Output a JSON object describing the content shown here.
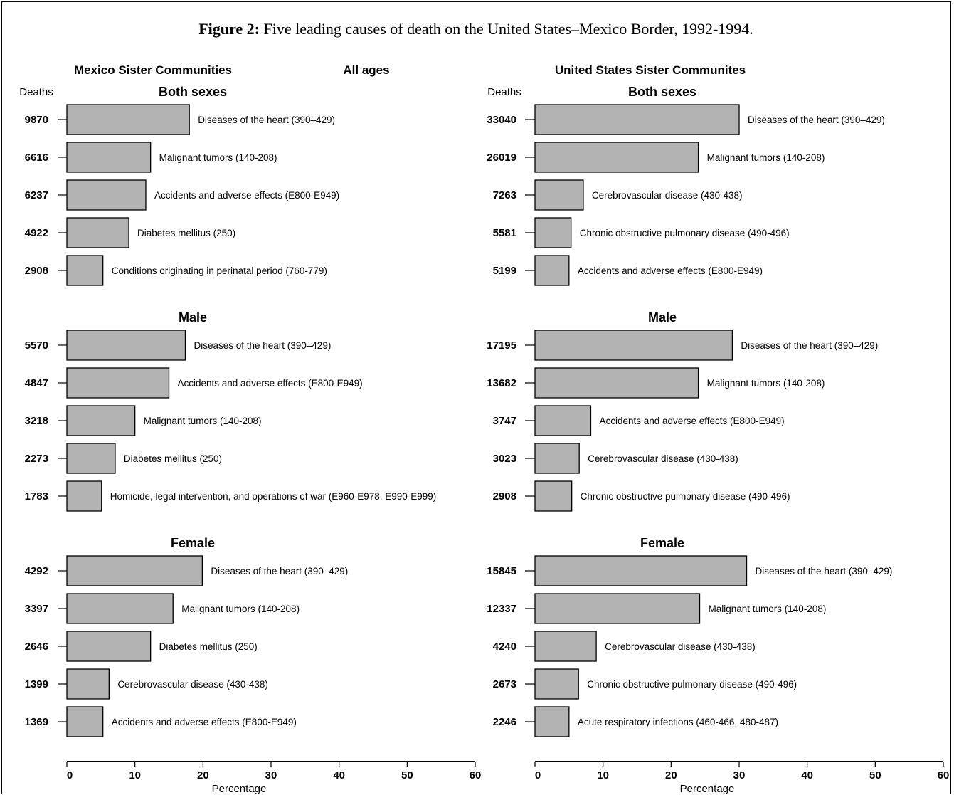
{
  "chart_data": [
    {
      "type": "bar",
      "title": "Figure 2:",
      "title_rest": "Five leading causes of death on the United States–Mexico Border, 1992-1994.",
      "region": "Mexico Sister Communities",
      "age_group": "All ages",
      "ylabel": "Deaths",
      "xlabel": "Percentage",
      "xlim": [
        0,
        60
      ],
      "xticks": [
        "0",
        "10",
        "20",
        "30",
        "40",
        "50",
        "60"
      ],
      "orientation": "horizontal",
      "panels": [
        {
          "name": "Both sexes",
          "categories": [
            "Diseases of the heart (390–429)",
            "Malignant tumors (140-208)",
            "Accidents and adverse effects (E800-E949)",
            "Diabetes mellitus (250)",
            "Conditions originating in perinatal period (760-779)"
          ],
          "deaths": [
            "9870",
            "6616",
            "6237",
            "4922",
            "2908"
          ],
          "values": [
            18.0,
            12.3,
            11.6,
            9.1,
            5.3
          ]
        },
        {
          "name": "Male",
          "categories": [
            "Diseases of the heart (390–429)",
            "Accidents and adverse effects (E800-E949)",
            "Malignant tumors (140-208)",
            "Diabetes mellitus (250)",
            "Homicide, legal intervention, and operations of war (E960-E978, E990-E999)"
          ],
          "deaths": [
            "5570",
            "4847",
            "3218",
            "2273",
            "1783"
          ],
          "values": [
            17.4,
            15.0,
            10.0,
            7.1,
            5.1
          ]
        },
        {
          "name": "Female",
          "categories": [
            "Diseases of the heart (390–429)",
            "Malignant tumors (140-208)",
            "Diabetes mellitus (250)",
            "Cerebrovascular disease (430-438)",
            "Accidents and adverse effects (E800-E949)"
          ],
          "deaths": [
            "4292",
            "3397",
            "2646",
            "1399",
            "1369"
          ],
          "values": [
            19.9,
            15.6,
            12.3,
            6.2,
            5.3
          ]
        }
      ]
    },
    {
      "type": "bar",
      "region": "United States Sister Communites",
      "ylabel": "Deaths",
      "xlabel": "Percentage",
      "xlim": [
        0,
        60
      ],
      "xticks": [
        "0",
        "10",
        "20",
        "30",
        "40",
        "50",
        "60"
      ],
      "orientation": "horizontal",
      "panels": [
        {
          "name": "Both sexes",
          "categories": [
            "Diseases of the heart (390–429)",
            "Malignant tumors (140-208)",
            "Cerebrovascular disease (430-438)",
            "Chronic obstructive pulmonary disease (490-496)",
            "Accidents and adverse effects (E800-E949)"
          ],
          "deaths": [
            "33040",
            "26019",
            "7263",
            "5581",
            "5199"
          ],
          "values": [
            30.0,
            24.0,
            7.1,
            5.3,
            5.0
          ]
        },
        {
          "name": "Male",
          "categories": [
            "Diseases of the heart (390–429)",
            "Malignant tumors (140-208)",
            "Accidents and adverse effects (E800-E949)",
            "Cerebrovascular disease (430-438)",
            "Chronic obstructive pulmonary disease (490-496)"
          ],
          "deaths": [
            "17195",
            "13682",
            "3747",
            "3023",
            "2908"
          ],
          "values": [
            29.0,
            24.0,
            8.2,
            6.5,
            5.4
          ]
        },
        {
          "name": "Female",
          "categories": [
            "Diseases of the heart (390–429)",
            "Malignant tumors (140-208)",
            "Cerebrovascular disease (430-438)",
            "Chronic obstructive pulmonary disease (490-496)",
            "Acute respiratory infections (460-466, 480-487)"
          ],
          "deaths": [
            "15845",
            "12337",
            "4240",
            "2673",
            "2246"
          ],
          "values": [
            31.1,
            24.2,
            9.0,
            6.4,
            5.0
          ]
        }
      ]
    }
  ]
}
